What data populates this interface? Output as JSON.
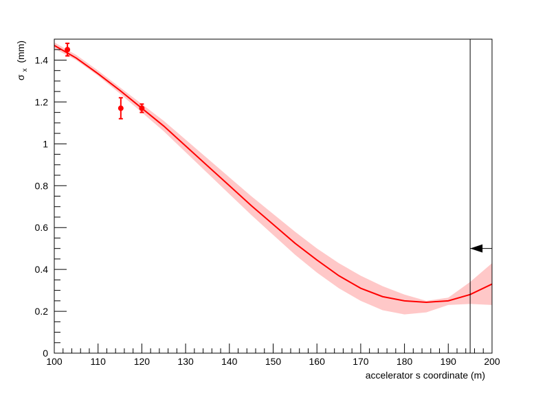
{
  "chart_data": {
    "type": "line",
    "xlabel": "accelerator s coordinate (m)",
    "ylabel_symbol": "σ",
    "ylabel_subscript": "x",
    "ylabel_unit": "(mm)",
    "xlim": [
      100,
      200
    ],
    "ylim": [
      0,
      1.5
    ],
    "grid": false,
    "x_ticks": [
      100,
      110,
      120,
      130,
      140,
      150,
      160,
      170,
      180,
      190,
      200
    ],
    "y_ticks": [
      0,
      0.2,
      0.4,
      0.6,
      0.8,
      1,
      1.2,
      1.4
    ],
    "y_tick_labels": [
      "0",
      "0.2",
      "0.4",
      "0.6",
      "0.8",
      "1",
      "1.2",
      "1.4"
    ],
    "series": [
      {
        "kind": "points",
        "color": "#ff0000",
        "points": [
          {
            "x": 103,
            "y": 1.45,
            "yerr": 0.03
          },
          {
            "x": 115.2,
            "y": 1.17,
            "yerr": 0.05
          },
          {
            "x": 120,
            "y": 1.17,
            "yerr": 0.02
          }
        ]
      },
      {
        "kind": "fit",
        "color": "#ff0000",
        "band_color": "#ffc8c8",
        "x": [
          100,
          105,
          110,
          115,
          120,
          125,
          130,
          135,
          140,
          145,
          150,
          155,
          160,
          165,
          170,
          175,
          180,
          185,
          190,
          195,
          200
        ],
        "y": [
          1.47,
          1.41,
          1.335,
          1.255,
          1.17,
          1.085,
          0.99,
          0.895,
          0.8,
          0.705,
          0.615,
          0.525,
          0.445,
          0.37,
          0.31,
          0.27,
          0.25,
          0.243,
          0.25,
          0.28,
          0.33
        ],
        "lower": [
          1.455,
          1.4,
          1.325,
          1.24,
          1.15,
          1.06,
          0.96,
          0.86,
          0.76,
          0.66,
          0.565,
          0.47,
          0.385,
          0.31,
          0.25,
          0.205,
          0.185,
          0.195,
          0.23,
          0.235,
          0.23
        ],
        "upper": [
          1.485,
          1.425,
          1.35,
          1.27,
          1.19,
          1.11,
          1.02,
          0.93,
          0.84,
          0.75,
          0.665,
          0.58,
          0.5,
          0.43,
          0.37,
          0.32,
          0.28,
          0.25,
          0.265,
          0.34,
          0.43
        ]
      }
    ],
    "annotations": [
      {
        "kind": "vertical_line",
        "x": 195,
        "y_top": 1.5,
        "color": "#000000"
      },
      {
        "kind": "arrow",
        "direction": "left",
        "x_from": 200,
        "x_to": 195,
        "y": 0.5,
        "color": "#000000"
      }
    ]
  }
}
